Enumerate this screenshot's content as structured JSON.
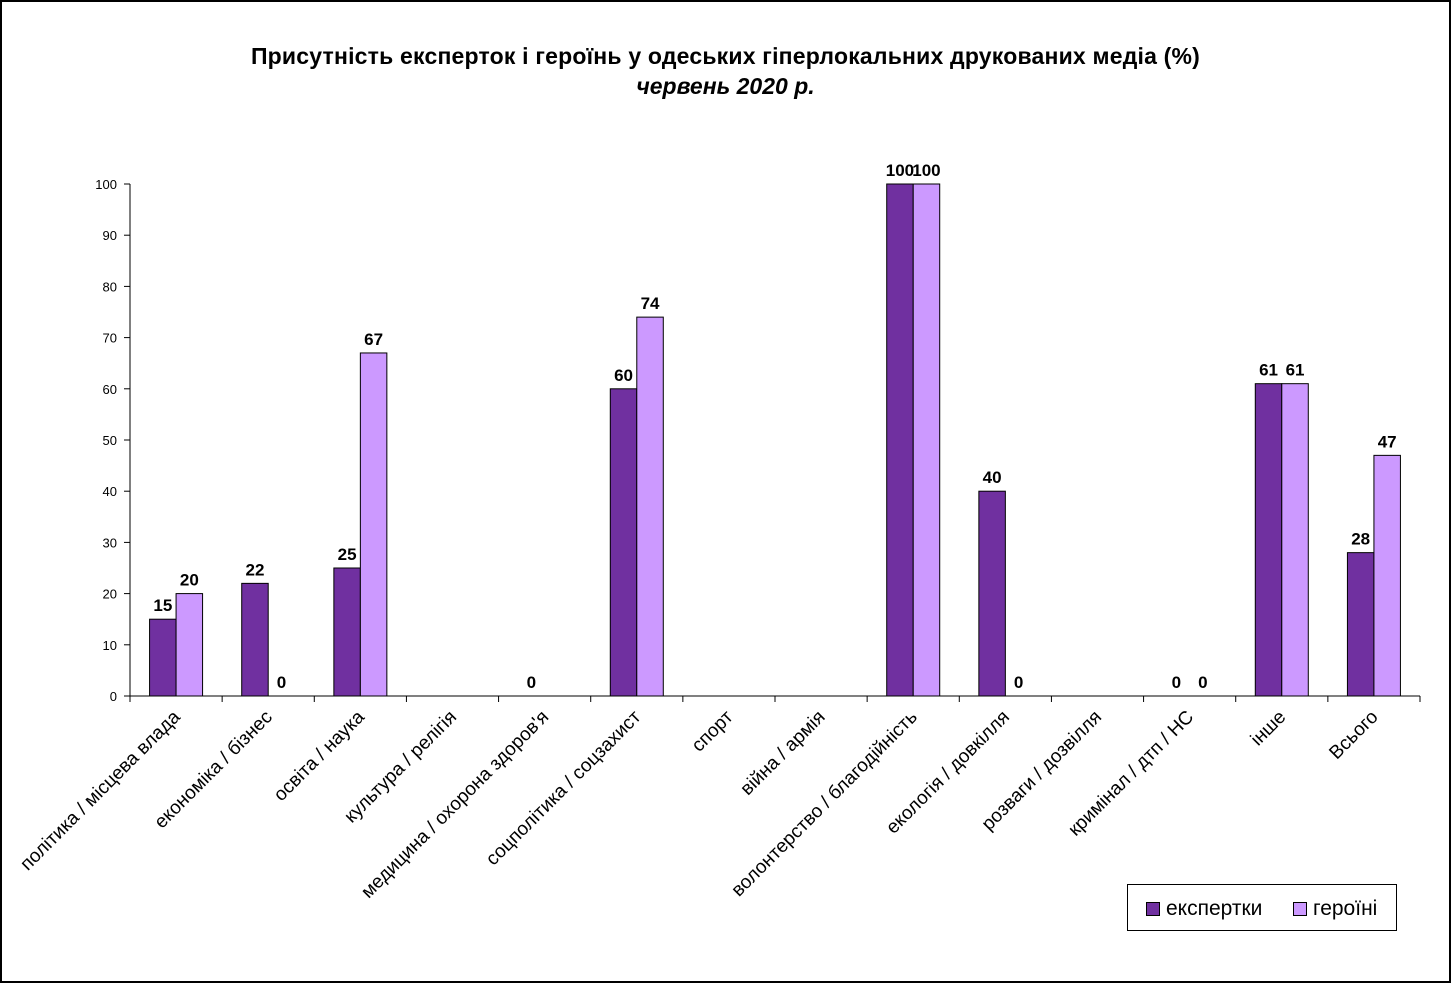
{
  "chart_data": {
    "type": "bar",
    "title": "Присутність експерток і героїнь у одеських гіперлокальних друкованих медіа (%)",
    "subtitle": "червень 2020 р.",
    "xlabel": "",
    "ylabel": "",
    "ylim": [
      0,
      100
    ],
    "yticks": [
      0,
      10,
      20,
      30,
      40,
      50,
      60,
      70,
      80,
      90,
      100
    ],
    "grid": false,
    "legend_position": "bottom-right",
    "categories": [
      "політика / місцева влада",
      "економіка / бізнес",
      "освіта / наука",
      "культура / релігія",
      "медицина / охорона здоров'я",
      "соцполітика / соцзахист",
      "спорт",
      "війна / армія",
      "волонтерство / благодійність",
      "екологія / довкілля",
      "розваги / дозвілля",
      "кримінал / дтп / НС",
      "інше",
      "Всього"
    ],
    "series": [
      {
        "name": "експертки",
        "color": "#7030A0",
        "values": [
          15,
          22,
          25,
          null,
          0,
          60,
          null,
          null,
          100,
          40,
          null,
          0,
          61,
          28
        ]
      },
      {
        "name": "героїні",
        "color": "#CC99FF",
        "values": [
          20,
          0,
          67,
          null,
          null,
          74,
          null,
          null,
          100,
          0,
          null,
          0,
          61,
          47
        ]
      }
    ]
  }
}
